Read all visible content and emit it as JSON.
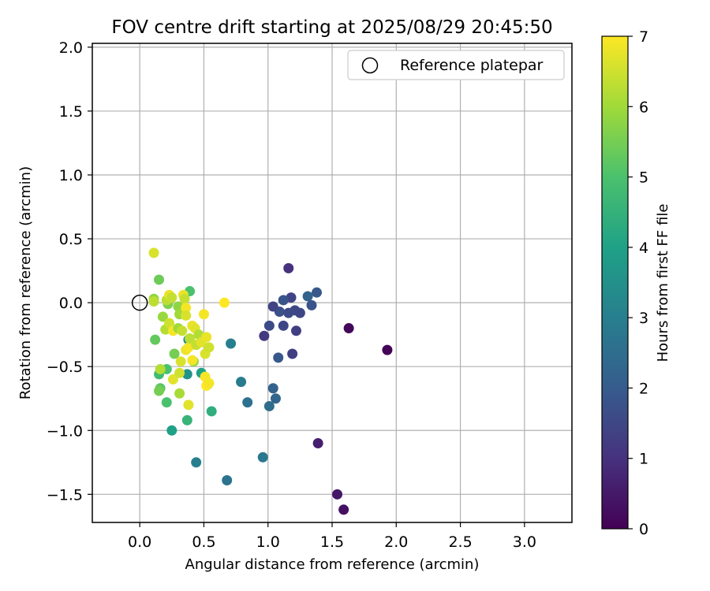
{
  "chart_data": {
    "type": "scatter",
    "title": "FOV centre drift starting at 2025/08/29 20:45:50",
    "xlabel": "Angular distance from reference (arcmin)",
    "ylabel": "Rotation from reference (arcmin)",
    "xlim": [
      -0.37,
      3.37
    ],
    "ylim": [
      -1.72,
      2.03
    ],
    "xticks": [
      0.0,
      0.5,
      1.0,
      1.5,
      2.0,
      2.5,
      3.0
    ],
    "xtick_labels": [
      "0.0",
      "0.5",
      "1.0",
      "1.5",
      "2.0",
      "2.5",
      "3.0"
    ],
    "yticks": [
      -1.5,
      -1.0,
      -0.5,
      0.0,
      0.5,
      1.0,
      1.5,
      2.0
    ],
    "ytick_labels": [
      "−1.5",
      "−1.0",
      "−0.5",
      "0.0",
      "0.5",
      "1.0",
      "1.5",
      "2.0"
    ],
    "grid": true,
    "legend": {
      "position": "top-right",
      "entries": [
        {
          "label": "Reference platepar",
          "marker": "open-circle"
        }
      ]
    },
    "reference_point": {
      "x": 0.0,
      "y": 0.0
    },
    "colorbar": {
      "label": "Hours from first FF file",
      "colormap": "viridis",
      "range": [
        0,
        7
      ],
      "ticks": [
        0,
        1,
        2,
        3,
        4,
        5,
        6,
        7
      ],
      "tick_labels": [
        "0",
        "1",
        "2",
        "3",
        "4",
        "5",
        "6",
        "7"
      ]
    },
    "points": [
      {
        "x": 1.93,
        "y": -0.37,
        "hours": 0.05
      },
      {
        "x": 1.63,
        "y": -0.2,
        "hours": 0.15
      },
      {
        "x": 1.59,
        "y": -1.62,
        "hours": 0.3
      },
      {
        "x": 1.54,
        "y": -1.5,
        "hours": 0.45
      },
      {
        "x": 1.39,
        "y": -1.1,
        "hours": 0.6
      },
      {
        "x": 1.16,
        "y": 0.27,
        "hours": 1.0
      },
      {
        "x": 1.38,
        "y": 0.08,
        "hours": 1.9
      },
      {
        "x": 1.34,
        "y": -0.02,
        "hours": 1.8
      },
      {
        "x": 1.31,
        "y": 0.05,
        "hours": 2.2
      },
      {
        "x": 1.25,
        "y": -0.08,
        "hours": 1.5
      },
      {
        "x": 1.21,
        "y": -0.06,
        "hours": 1.5
      },
      {
        "x": 1.22,
        "y": -0.22,
        "hours": 1.3
      },
      {
        "x": 1.18,
        "y": 0.04,
        "hours": 1.4
      },
      {
        "x": 1.16,
        "y": -0.08,
        "hours": 1.6
      },
      {
        "x": 1.12,
        "y": 0.02,
        "hours": 1.8
      },
      {
        "x": 1.12,
        "y": -0.18,
        "hours": 1.5
      },
      {
        "x": 1.09,
        "y": -0.07,
        "hours": 1.7
      },
      {
        "x": 1.04,
        "y": -0.03,
        "hours": 1.4
      },
      {
        "x": 1.01,
        "y": -0.18,
        "hours": 1.6
      },
      {
        "x": 1.19,
        "y": -0.4,
        "hours": 1.3
      },
      {
        "x": 0.97,
        "y": -0.26,
        "hours": 1.2
      },
      {
        "x": 1.08,
        "y": -0.43,
        "hours": 1.9
      },
      {
        "x": 1.04,
        "y": -0.67,
        "hours": 2.2
      },
      {
        "x": 1.06,
        "y": -0.75,
        "hours": 2.3
      },
      {
        "x": 1.01,
        "y": -0.81,
        "hours": 2.5
      },
      {
        "x": 0.84,
        "y": -0.78,
        "hours": 2.6
      },
      {
        "x": 0.79,
        "y": -0.62,
        "hours": 2.9
      },
      {
        "x": 0.71,
        "y": -0.32,
        "hours": 3.0
      },
      {
        "x": 0.96,
        "y": -1.21,
        "hours": 2.8
      },
      {
        "x": 0.68,
        "y": -1.39,
        "hours": 2.7
      },
      {
        "x": 0.44,
        "y": -1.25,
        "hours": 3.0
      },
      {
        "x": 0.25,
        "y": -1.0,
        "hours": 4.0
      },
      {
        "x": 0.37,
        "y": -0.92,
        "hours": 4.6
      },
      {
        "x": 0.56,
        "y": -0.85,
        "hours": 4.4
      },
      {
        "x": 0.53,
        "y": -0.64,
        "hours": 4.2
      },
      {
        "x": 0.48,
        "y": -0.55,
        "hours": 4.0
      },
      {
        "x": 0.37,
        "y": -0.56,
        "hours": 3.6
      },
      {
        "x": 0.38,
        "y": -0.29,
        "hours": 3.3
      },
      {
        "x": 0.42,
        "y": -0.46,
        "hours": 5.8
      },
      {
        "x": 0.39,
        "y": 0.09,
        "hours": 5.0
      },
      {
        "x": 0.21,
        "y": -0.78,
        "hours": 5.0
      },
      {
        "x": 0.16,
        "y": -0.67,
        "hours": 5.2
      },
      {
        "x": 0.15,
        "y": -0.69,
        "hours": 5.5
      },
      {
        "x": 0.15,
        "y": -0.56,
        "hours": 4.8
      },
      {
        "x": 0.21,
        "y": -0.52,
        "hours": 5.0
      },
      {
        "x": 0.16,
        "y": -0.52,
        "hours": 6.2
      },
      {
        "x": 0.12,
        "y": -0.29,
        "hours": 5.3
      },
      {
        "x": 0.15,
        "y": 0.18,
        "hours": 5.4
      },
      {
        "x": 0.11,
        "y": 0.39,
        "hours": 6.6
      },
      {
        "x": 0.11,
        "y": 0.03,
        "hours": 5.8
      },
      {
        "x": 0.11,
        "y": 0.01,
        "hours": 6.3
      },
      {
        "x": 0.18,
        "y": -0.11,
        "hours": 5.9
      },
      {
        "x": 0.2,
        "y": -0.21,
        "hours": 6.2
      },
      {
        "x": 0.23,
        "y": -0.16,
        "hours": 6.5
      },
      {
        "x": 0.22,
        "y": -0.01,
        "hours": 5.6
      },
      {
        "x": 0.21,
        "y": 0.02,
        "hours": 6.3
      },
      {
        "x": 0.23,
        "y": 0.06,
        "hours": 6.8
      },
      {
        "x": 0.25,
        "y": 0.04,
        "hours": 6.4
      },
      {
        "x": 0.26,
        "y": -0.22,
        "hours": 6.9
      },
      {
        "x": 0.27,
        "y": -0.4,
        "hours": 5.5
      },
      {
        "x": 0.26,
        "y": -0.6,
        "hours": 6.7
      },
      {
        "x": 0.31,
        "y": -0.71,
        "hours": 6.1
      },
      {
        "x": 0.38,
        "y": -0.8,
        "hours": 6.7
      },
      {
        "x": 0.3,
        "y": -0.03,
        "hours": 5.8
      },
      {
        "x": 0.31,
        "y": -0.09,
        "hours": 6.0
      },
      {
        "x": 0.3,
        "y": -0.2,
        "hours": 6.0
      },
      {
        "x": 0.33,
        "y": -0.22,
        "hours": 6.4
      },
      {
        "x": 0.32,
        "y": -0.46,
        "hours": 6.6
      },
      {
        "x": 0.31,
        "y": -0.55,
        "hours": 6.5
      },
      {
        "x": 0.34,
        "y": 0.06,
        "hours": 6.8
      },
      {
        "x": 0.35,
        "y": 0.03,
        "hours": 6.4
      },
      {
        "x": 0.36,
        "y": -0.04,
        "hours": 6.9
      },
      {
        "x": 0.36,
        "y": -0.1,
        "hours": 6.6
      },
      {
        "x": 0.36,
        "y": -0.37,
        "hours": 6.8
      },
      {
        "x": 0.38,
        "y": -0.35,
        "hours": 6.9
      },
      {
        "x": 0.39,
        "y": -0.28,
        "hours": 6.3
      },
      {
        "x": 0.41,
        "y": -0.18,
        "hours": 6.8
      },
      {
        "x": 0.41,
        "y": -0.45,
        "hours": 6.9
      },
      {
        "x": 0.43,
        "y": -0.2,
        "hours": 6.7
      },
      {
        "x": 0.44,
        "y": -0.33,
        "hours": 6.4
      },
      {
        "x": 0.46,
        "y": -0.25,
        "hours": 6.2
      },
      {
        "x": 0.48,
        "y": -0.31,
        "hours": 6.7
      },
      {
        "x": 0.5,
        "y": -0.09,
        "hours": 6.9
      },
      {
        "x": 0.51,
        "y": -0.4,
        "hours": 6.6
      },
      {
        "x": 0.52,
        "y": -0.27,
        "hours": 6.8
      },
      {
        "x": 0.54,
        "y": -0.35,
        "hours": 6.5
      },
      {
        "x": 0.51,
        "y": -0.58,
        "hours": 6.9
      },
      {
        "x": 0.52,
        "y": -0.65,
        "hours": 7.0
      },
      {
        "x": 0.54,
        "y": -0.63,
        "hours": 6.9
      },
      {
        "x": 0.66,
        "y": 0.0,
        "hours": 7.0
      }
    ]
  }
}
